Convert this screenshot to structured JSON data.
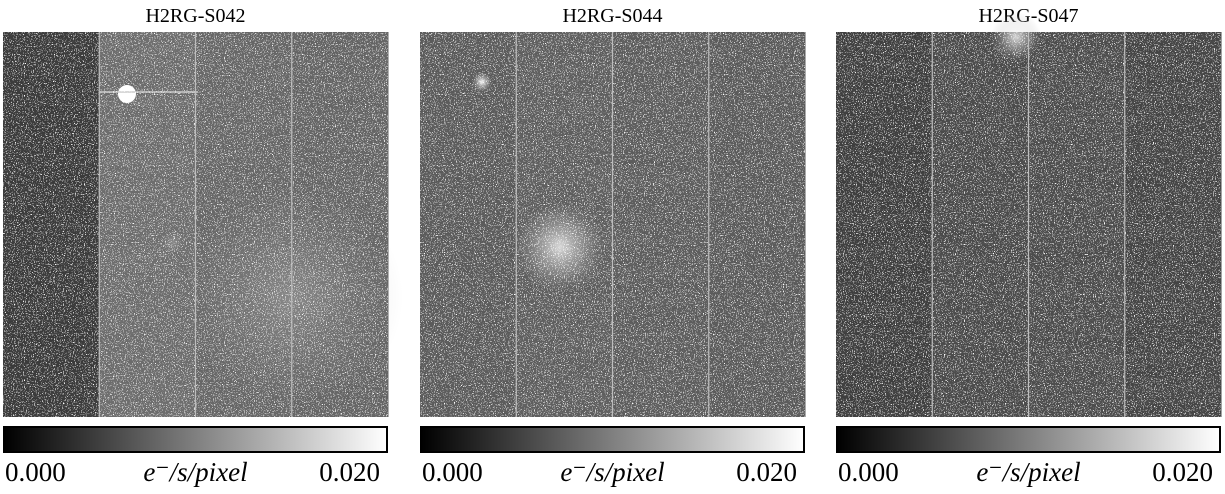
{
  "panels": [
    {
      "title": "H2RG-S042",
      "colorbar": {
        "ticks": [
          {
            "value": 0,
            "label": "0.000"
          },
          {
            "value": 0.02,
            "label": "0.020"
          }
        ],
        "label": "e⁻/s/pixel"
      }
    },
    {
      "title": "H2RG-S044",
      "colorbar": {
        "ticks": [
          {
            "value": 0,
            "label": "0.000"
          },
          {
            "value": 0.02,
            "label": "0.020"
          }
        ],
        "label": "e⁻/s/pixel"
      }
    },
    {
      "title": "H2RG-S047",
      "colorbar": {
        "ticks": [
          {
            "value": 0,
            "label": "0.000"
          },
          {
            "value": 0.02,
            "label": "0.020"
          }
        ],
        "label": "e⁻/s/pixel"
      }
    }
  ]
}
